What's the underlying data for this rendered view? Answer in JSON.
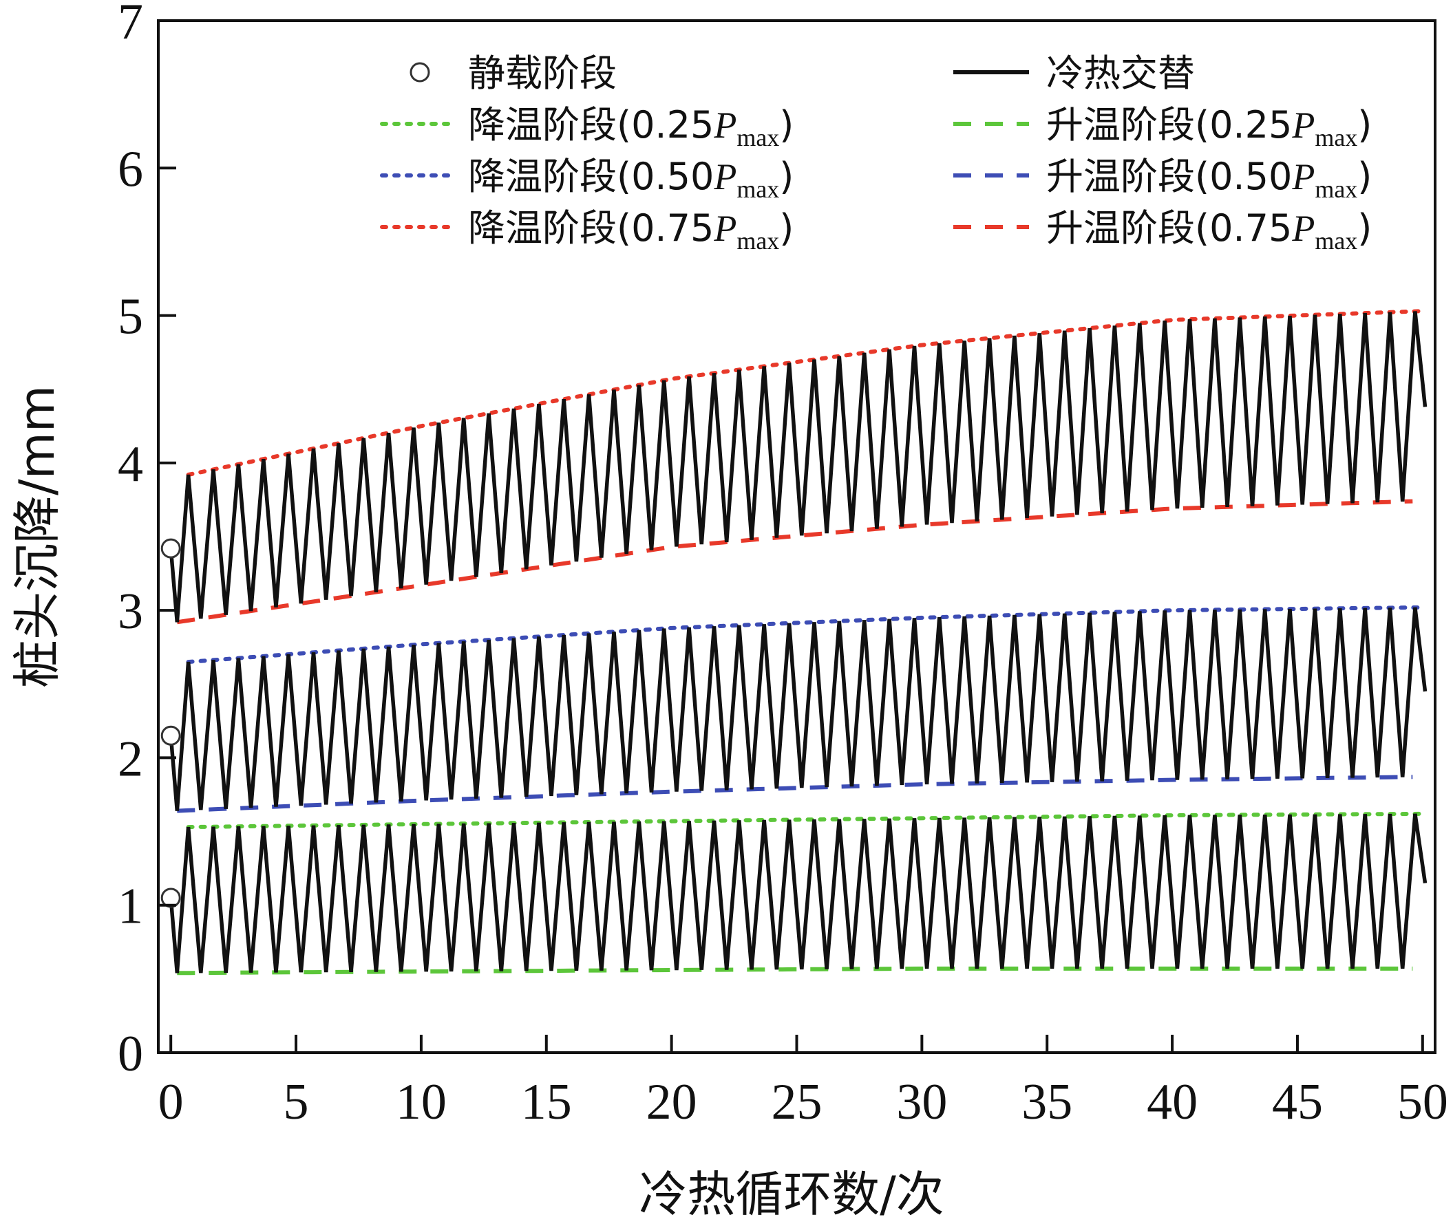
{
  "chart_data": {
    "type": "line",
    "xlabel": "冷热循环数/次",
    "ylabel": "桩头沉降/mm",
    "xlim": [
      -0.5,
      50.5
    ],
    "ylim": [
      0,
      7
    ],
    "xticks": [
      0,
      5,
      10,
      15,
      20,
      25,
      30,
      35,
      40,
      45,
      50
    ],
    "yticks": [
      0,
      1,
      2,
      3,
      4,
      5,
      6,
      7
    ],
    "grid": false,
    "legend_position": "top",
    "colors": {
      "green": "#5cc63a",
      "blue": "#3d4db5",
      "red": "#e8392a",
      "black": "#111111"
    },
    "legend": [
      {
        "key": "static",
        "label": "静载阶段",
        "marker": "circle",
        "color": "#111111"
      },
      {
        "key": "cycle",
        "label": "冷热交替",
        "line": "solid",
        "color": "#111111"
      },
      {
        "key": "cool_025",
        "label": "降温阶段(0.25",
        "label_p": "P",
        "label_sub": "max",
        "label_end": ")",
        "line": "dotted",
        "color": "#5cc63a"
      },
      {
        "key": "heat_025",
        "label": "升温阶段(0.25",
        "label_p": "P",
        "label_sub": "max",
        "label_end": ")",
        "line": "dashed",
        "color": "#5cc63a"
      },
      {
        "key": "cool_050",
        "label": "降温阶段(0.50",
        "label_p": "P",
        "label_sub": "max",
        "label_end": ")",
        "line": "dotted",
        "color": "#3d4db5"
      },
      {
        "key": "heat_050",
        "label": "升温阶段(0.50",
        "label_p": "P",
        "label_sub": "max",
        "label_end": ")",
        "line": "dashed",
        "color": "#3d4db5"
      },
      {
        "key": "cool_075",
        "label": "降温阶段(0.75",
        "label_p": "P",
        "label_sub": "max",
        "label_end": ")",
        "line": "dotted",
        "color": "#e8392a"
      },
      {
        "key": "heat_075",
        "label": "升温阶段(0.75",
        "label_p": "P",
        "label_sub": "max",
        "label_end": ")",
        "line": "dashed",
        "color": "#e8392a"
      }
    ],
    "groups": [
      {
        "load": "0.25Pmax",
        "color": "#5cc63a",
        "static": {
          "x": 0,
          "y": 1.05
        },
        "upper_envelope": {
          "x": [
            0.7,
            10,
            20,
            30,
            40,
            50
          ],
          "y": [
            1.53,
            1.55,
            1.57,
            1.59,
            1.61,
            1.62
          ]
        },
        "lower_envelope": {
          "x": [
            0.25,
            10,
            20,
            30,
            40,
            49.6
          ],
          "y": [
            0.54,
            0.55,
            0.56,
            0.57,
            0.57,
            0.57
          ]
        },
        "end_value": 1.15
      },
      {
        "load": "0.50Pmax",
        "color": "#3d4db5",
        "static": {
          "x": 0,
          "y": 2.15
        },
        "upper_envelope": {
          "x": [
            0.7,
            10,
            20,
            30,
            40,
            50
          ],
          "y": [
            2.65,
            2.77,
            2.88,
            2.95,
            3.0,
            3.02
          ]
        },
        "lower_envelope": {
          "x": [
            0.25,
            10,
            20,
            30,
            40,
            49.6
          ],
          "y": [
            1.64,
            1.71,
            1.77,
            1.82,
            1.85,
            1.87
          ]
        },
        "end_value": 2.45
      },
      {
        "load": "0.75Pmax",
        "color": "#e8392a",
        "static": {
          "x": 0,
          "y": 3.42
        },
        "upper_envelope": {
          "x": [
            0.7,
            10,
            20,
            30,
            40,
            50
          ],
          "y": [
            3.92,
            4.25,
            4.57,
            4.8,
            4.97,
            5.03
          ]
        },
        "lower_envelope": {
          "x": [
            0.25,
            10,
            20,
            30,
            40,
            49.6
          ],
          "y": [
            2.92,
            3.17,
            3.43,
            3.58,
            3.69,
            3.74
          ]
        },
        "end_value": 4.38
      }
    ]
  }
}
